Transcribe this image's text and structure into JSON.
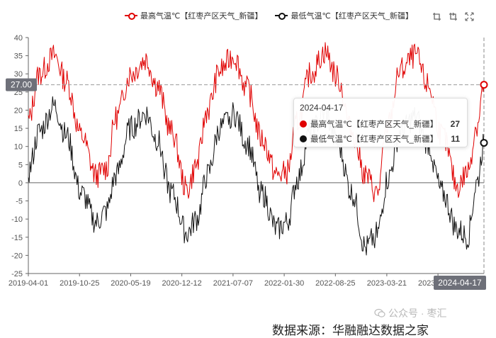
{
  "legend": {
    "max_label": "最高气温℃【红枣产区天气_新疆】",
    "min_label": "最低气温℃【红枣产区天气_新疆】"
  },
  "toolbar": {
    "icons": [
      "zoom-icon",
      "zoom-reset-icon",
      "fullscreen-icon"
    ]
  },
  "tooltip": {
    "date": "2024-04-17",
    "max_name": "最高气温℃【红枣产区天气_新疆】",
    "max_value": "27",
    "min_name": "最低气温℃【红枣产区天气_新疆】",
    "min_value": "11"
  },
  "ref_label": "27.00",
  "cursor_label": "2024-04-17",
  "source_text": "数据来源：华融融达数据之家",
  "watermark_text": "公众号 · 枣汇",
  "chart_data": {
    "type": "line",
    "ylim": [
      -25,
      40
    ],
    "yticks": [
      40,
      35,
      30,
      25,
      20,
      15,
      10,
      5,
      0,
      -5,
      -10,
      -15,
      -20,
      -25
    ],
    "xlim": [
      "2019-04-01",
      "2024-04-17"
    ],
    "xticks": [
      "2019-04-01",
      "2019-10-25",
      "2020-05-19",
      "2020-12-12",
      "2021-07-07",
      "2022-01-30",
      "2022-08-25",
      "2023-03-21",
      "2023-10-14"
    ],
    "reference_line": 27,
    "grid": false,
    "legend_position": "top",
    "colors": {
      "max": "#e00000",
      "min": "#111111"
    },
    "series": [
      {
        "name": "最高气温℃【红枣产区天气_新疆】",
        "x": [
          "2019-04-01",
          "2019-05-15",
          "2019-07-15",
          "2019-09-01",
          "2019-11-01",
          "2020-01-01",
          "2020-02-10",
          "2020-03-20",
          "2020-05-19",
          "2020-07-20",
          "2020-09-01",
          "2020-11-01",
          "2021-01-01",
          "2021-02-10",
          "2021-03-25",
          "2021-05-15",
          "2021-07-10",
          "2021-09-01",
          "2021-11-01",
          "2022-01-01",
          "2022-02-10",
          "2022-03-25",
          "2022-05-15",
          "2022-07-15",
          "2022-09-01",
          "2022-11-01",
          "2022-12-25",
          "2023-02-10",
          "2023-03-25",
          "2023-05-15",
          "2023-07-15",
          "2023-09-01",
          "2023-11-01",
          "2024-01-01",
          "2024-02-10",
          "2024-03-20",
          "2024-04-17"
        ],
        "values": [
          17,
          30,
          35,
          28,
          13,
          2,
          4,
          18,
          30,
          34,
          27,
          14,
          -2,
          5,
          20,
          31,
          35,
          26,
          12,
          2,
          3,
          17,
          30,
          36,
          29,
          14,
          2,
          -3,
          16,
          31,
          35,
          27,
          13,
          -1,
          3,
          16,
          27
        ]
      },
      {
        "name": "最低气温℃【红枣产区天气_新疆】",
        "x": [
          "2019-04-01",
          "2019-05-15",
          "2019-07-15",
          "2019-09-01",
          "2019-11-01",
          "2020-01-01",
          "2020-02-10",
          "2020-03-20",
          "2020-05-19",
          "2020-07-20",
          "2020-09-01",
          "2020-11-01",
          "2021-01-01",
          "2021-02-10",
          "2021-03-25",
          "2021-05-15",
          "2021-07-10",
          "2021-09-01",
          "2021-11-01",
          "2022-01-01",
          "2022-02-10",
          "2022-03-25",
          "2022-05-15",
          "2022-07-15",
          "2022-09-01",
          "2022-11-01",
          "2022-12-25",
          "2023-02-10",
          "2023-03-25",
          "2023-05-15",
          "2023-07-15",
          "2023-09-01",
          "2023-11-01",
          "2024-01-01",
          "2024-02-10",
          "2024-03-20",
          "2024-04-17"
        ],
        "values": [
          3,
          14,
          21,
          13,
          -3,
          -11,
          -8,
          2,
          15,
          19,
          12,
          -3,
          -14,
          -10,
          2,
          15,
          19,
          11,
          -3,
          -13,
          -11,
          1,
          14,
          19,
          11,
          -3,
          -18,
          -14,
          1,
          14,
          18,
          11,
          -3,
          -13,
          -15,
          0,
          11
        ]
      }
    ]
  }
}
